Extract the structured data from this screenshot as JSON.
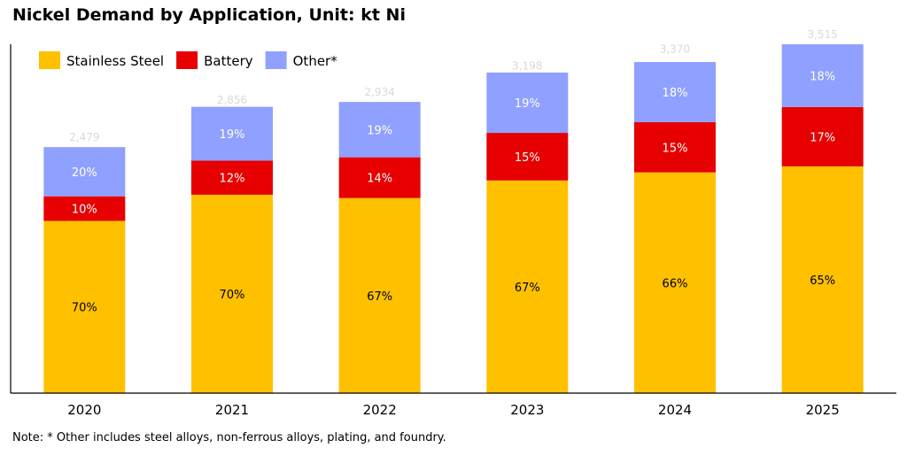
{
  "chart_data": {
    "type": "bar",
    "stacked": true,
    "title": "Nickel Demand by Application, Unit: kt Ni",
    "note": "Note: * Other includes steel alloys, non-ferrous alloys, plating, and foundry.",
    "categories": [
      "2020",
      "2021",
      "2022",
      "2023",
      "2024",
      "2025"
    ],
    "totals": [
      2479,
      2856,
      2934,
      3198,
      3370,
      3515
    ],
    "total_labels": [
      "2,479",
      "2,856",
      "2,934",
      "3,198",
      "3,370",
      "3,515"
    ],
    "series": [
      {
        "name": "Stainless Steel",
        "color": "#FFC000",
        "label_color": "#000000",
        "shares": [
          70,
          70,
          67,
          67,
          66,
          65
        ],
        "labels": [
          "70%",
          "70%",
          "67%",
          "67%",
          "66%",
          "65%"
        ]
      },
      {
        "name": "Battery",
        "color": "#E60000",
        "label_color": "#ffffff",
        "shares": [
          10,
          12,
          14,
          15,
          15,
          17
        ],
        "labels": [
          "10%",
          "12%",
          "14%",
          "15%",
          "15%",
          "17%"
        ]
      },
      {
        "name": "Other*",
        "color": "#8FA0FF",
        "label_color": "#ffffff",
        "shares": [
          20,
          19,
          19,
          19,
          18,
          18
        ],
        "labels": [
          "20%",
          "19%",
          "19%",
          "19%",
          "18%",
          "18%"
        ]
      }
    ],
    "ylim": [
      0,
      3515
    ],
    "grid": false,
    "legend": "top-left"
  }
}
